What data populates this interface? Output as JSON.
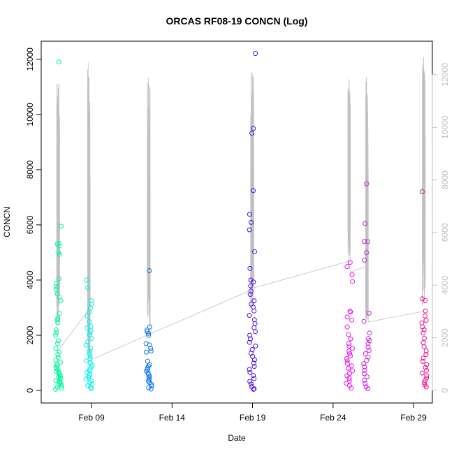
{
  "chart_data": {
    "type": "scatter",
    "title": "ORCAS RF08-19 CONCN (Log)",
    "xlabel": "Date",
    "ylabel": "CONCN",
    "x_ticks": [
      {
        "date": "2016-02-09",
        "label": "Feb 09"
      },
      {
        "date": "2016-02-14",
        "label": "Feb 14"
      },
      {
        "date": "2016-02-19",
        "label": "Feb 19"
      },
      {
        "date": "2016-02-24",
        "label": "Feb 24"
      },
      {
        "date": "2016-02-29",
        "label": "Feb 29"
      }
    ],
    "xlim": [
      "2016-02-05 21:00",
      "2016-03-01 04:00"
    ],
    "ylim": [
      0,
      12300
    ],
    "y_ticks": [
      0,
      2000,
      4000,
      6000,
      8000,
      10000,
      12000
    ],
    "y2lim": [
      0,
      12900
    ],
    "y2_ticks": [
      0,
      2000,
      4000,
      6000,
      8000,
      10000,
      12000
    ],
    "colors": {
      "axis": "#000000",
      "right_axis": "#bfbfbf",
      "trace": "#c0c0c0"
    },
    "series": [
      {
        "flight": "RF08",
        "time": "2016-02-06 22:40",
        "color": "#00f59a",
        "values": [
          11900,
          5950,
          5330,
          5310,
          5240,
          4990,
          4930,
          4050,
          3870,
          3750,
          3660,
          3500,
          3380,
          3250,
          2790,
          2620,
          2560,
          2460,
          2200,
          2090,
          2000,
          1800,
          1700,
          1520,
          1400,
          1300,
          1200,
          1100,
          1020,
          950,
          890,
          840,
          790,
          740,
          690,
          650,
          600,
          560,
          520,
          480,
          440,
          400,
          360,
          320,
          280,
          240,
          200,
          160,
          120,
          80,
          40
        ]
      },
      {
        "flight": "RF09",
        "time": "2016-02-08 20:10",
        "color": "#00f0e8",
        "values": [
          4000,
          3720,
          3250,
          3120,
          2990,
          2840,
          2700,
          2490,
          2320,
          2260,
          2170,
          2090,
          2010,
          1880,
          1760,
          1640,
          1530,
          1430,
          1330,
          1240,
          1150,
          1070,
          990,
          920,
          850,
          780,
          710,
          650,
          590,
          530,
          470,
          410,
          350,
          290,
          230,
          170,
          110,
          60
        ]
      },
      {
        "flight": "RF10",
        "time": "2016-02-12 13:30",
        "color": "#0a78e6",
        "values": [
          4340,
          2300,
          2190,
          2130,
          2070,
          2000,
          1700,
          1650,
          1530,
          1430,
          1390,
          1060,
          930,
          880,
          820,
          760,
          700,
          640,
          580,
          520,
          460,
          400,
          340,
          280,
          220,
          160,
          100,
          50
        ]
      },
      {
        "flight": "RF11",
        "time": "2016-02-18 23:50",
        "color": "#4a10f0",
        "values": [
          12210,
          9490,
          9320,
          7240,
          6380,
          6090,
          5820,
          5030,
          4420,
          4000,
          3930,
          3790,
          3600,
          3480,
          3250,
          3130,
          3020,
          2880,
          2720,
          2560,
          2420,
          2270,
          2130,
          2000,
          1870,
          1740,
          1610,
          1480,
          1350,
          1230,
          1110,
          990,
          870,
          760,
          650,
          540,
          430,
          330,
          230,
          140,
          60,
          40
        ]
      },
      {
        "flight": "RF12",
        "time": "2016-02-25 00:15",
        "color": "#ee10ee",
        "values": [
          4640,
          4490,
          4190,
          3940,
          2870,
          2840,
          2660,
          2550,
          2300,
          2020,
          1870,
          1700,
          1610,
          1520,
          1430,
          1340,
          1250,
          1160,
          1070,
          980,
          890,
          800,
          710,
          620,
          530,
          440,
          350,
          260,
          170,
          80
        ]
      },
      {
        "flight": "RF13",
        "time": "2016-02-26 02:30",
        "color": "#cc20e0",
        "values": [
          7490,
          6050,
          5400,
          5390,
          4990,
          4720,
          2800,
          2500,
          2080,
          1880,
          1800,
          1700,
          1570,
          1450,
          1330,
          1210,
          1090,
          970,
          850,
          730,
          610,
          490,
          370,
          250,
          130,
          60
        ]
      },
      {
        "flight": "RF14",
        "time": "2016-02-29 15:15",
        "color": "#f01090",
        "values": [
          7200,
          3320,
          3260,
          2880,
          2700,
          2540,
          2450,
          2300,
          2200,
          2080,
          1890,
          1730,
          1580,
          1430,
          1300,
          1170,
          1050,
          940,
          830,
          730,
          630,
          540,
          450,
          360,
          280,
          200,
          130
        ]
      }
    ],
    "trace": {
      "flights": [
        {
          "start": "2016-02-06 20:00",
          "end": "2016-02-07 00:30",
          "min": 2400,
          "max": 12000
        },
        {
          "start": "2016-02-08 18:00",
          "end": "2016-02-08 22:00",
          "min": 1200,
          "max": 12500
        },
        {
          "start": "2016-02-12 11:00",
          "end": "2016-02-12 15:30",
          "min": 2300,
          "max": 11900
        },
        {
          "start": "2016-02-18 21:00",
          "end": "2016-02-19 02:00",
          "min": 3100,
          "max": 12100
        },
        {
          "start": "2016-02-24 22:00",
          "end": "2016-02-25 02:00",
          "min": 4800,
          "max": 12100
        },
        {
          "start": "2016-02-26 00:30",
          "end": "2016-02-26 04:30",
          "min": 2600,
          "max": 12100
        },
        {
          "start": "2016-02-29 13:00",
          "end": "2016-02-29 17:30",
          "min": 3200,
          "max": 12800
        }
      ],
      "baseline": [
        {
          "t": "2016-02-07 00:30",
          "v": 1600
        },
        {
          "t": "2016-02-08 18:00",
          "v": 3000
        },
        {
          "t": "2016-02-08 22:00",
          "v": 1150
        },
        {
          "t": "2016-02-12 11:00",
          "v": 2100
        },
        {
          "t": "2016-02-18 21:00",
          "v": 3800
        },
        {
          "t": "2016-02-19 02:00",
          "v": 3900
        },
        {
          "t": "2016-02-24 22:00",
          "v": 4900
        },
        {
          "t": "2016-02-25 02:00",
          "v": 4500
        },
        {
          "t": "2016-02-26 00:30",
          "v": 4700
        },
        {
          "t": "2016-02-26 04:30",
          "v": 2600
        },
        {
          "t": "2016-02-29 13:00",
          "v": 3000
        },
        {
          "t": "2016-02-29 17:30",
          "v": 3100
        }
      ]
    }
  }
}
